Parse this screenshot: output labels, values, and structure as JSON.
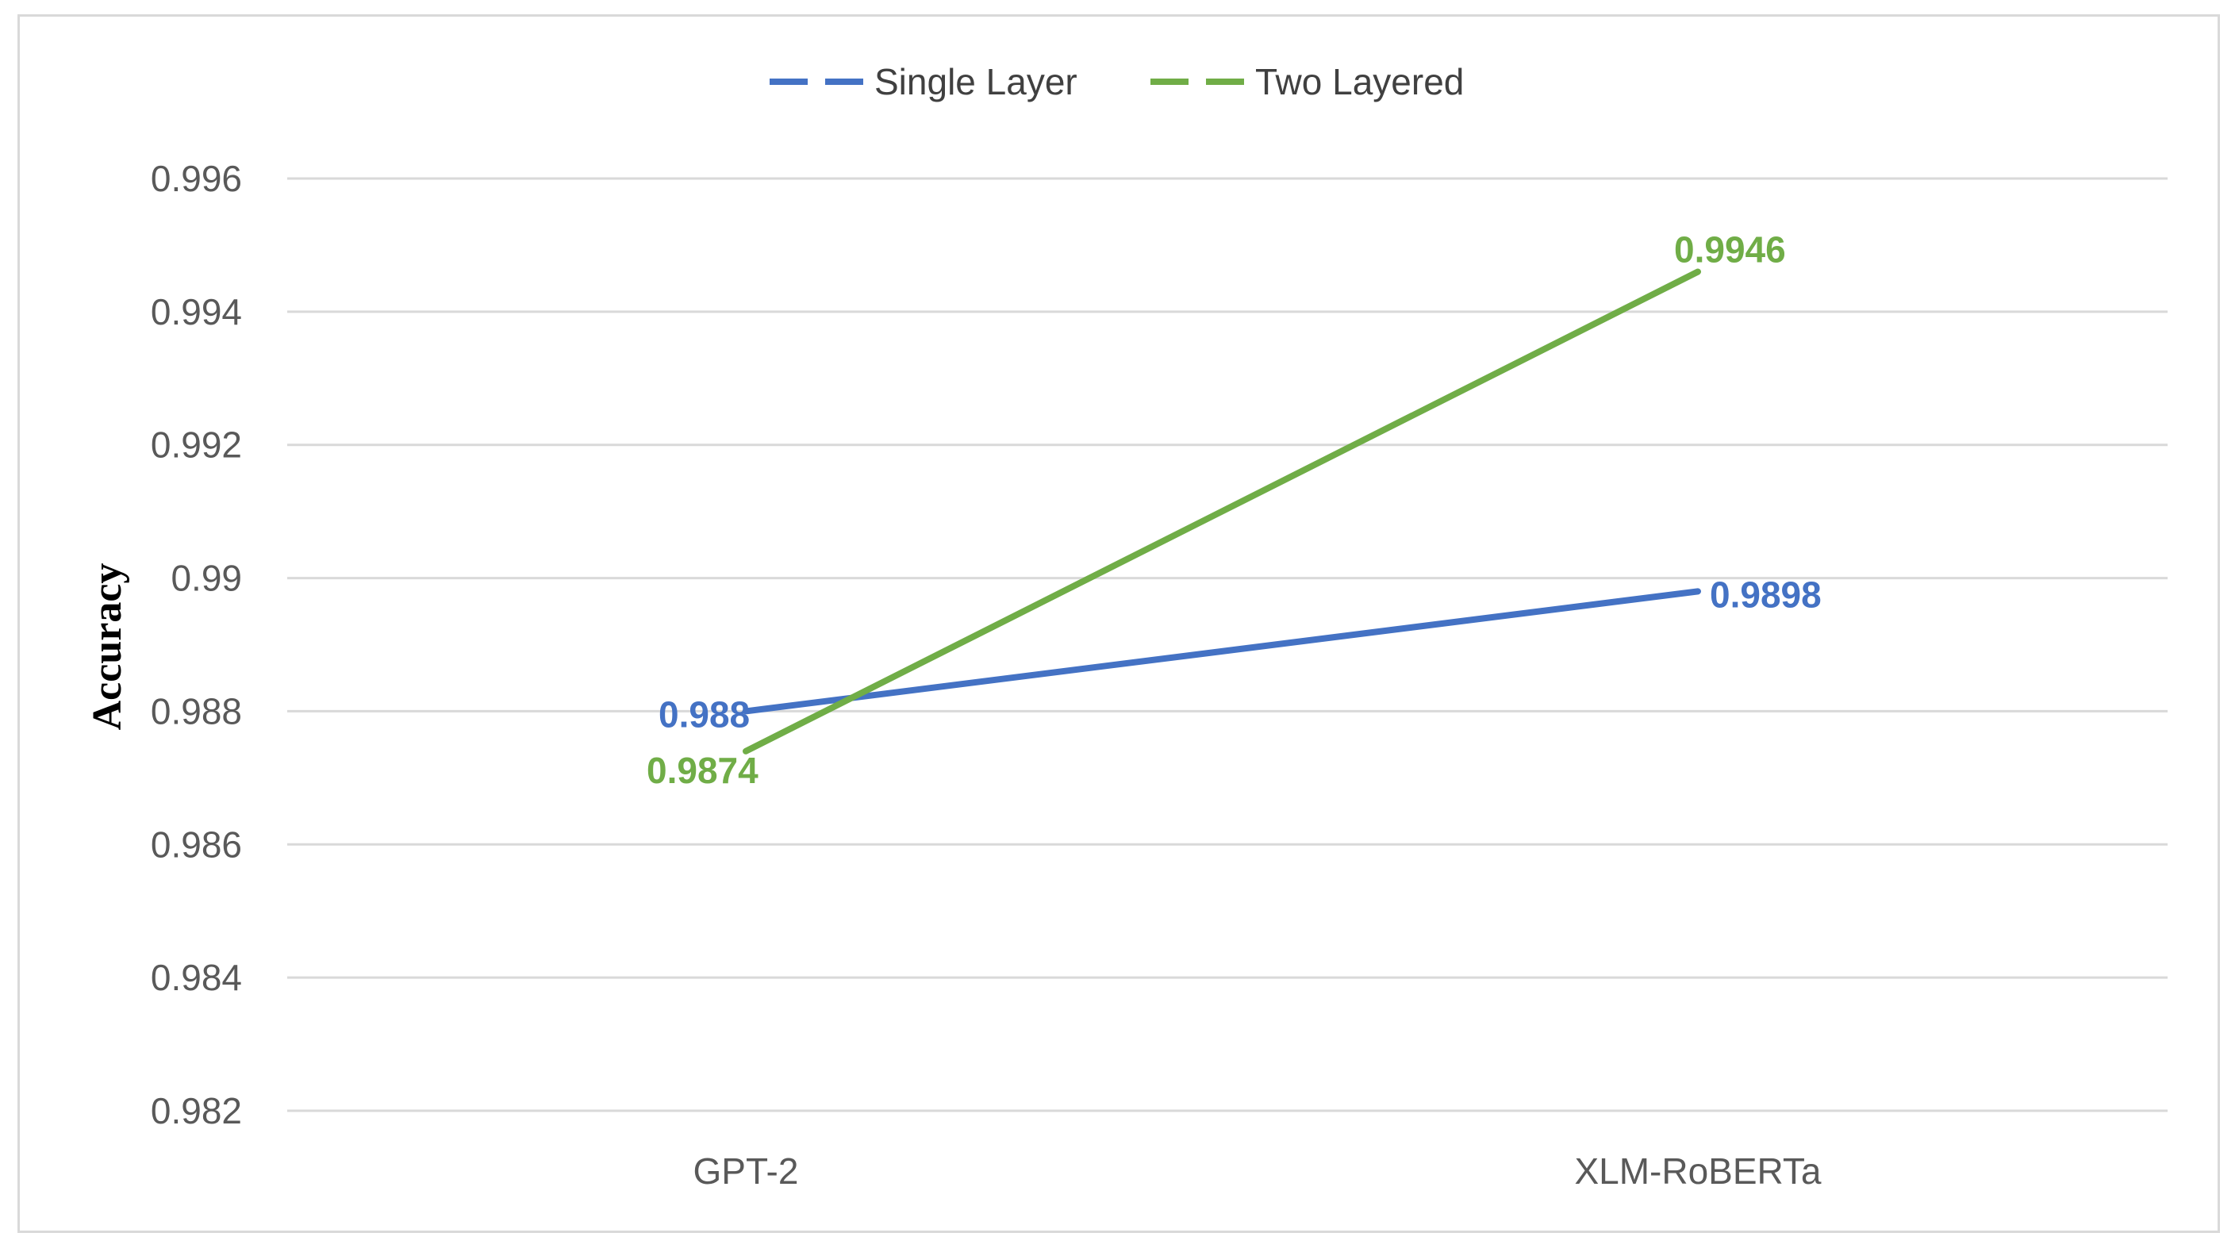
{
  "chart_data": {
    "type": "line",
    "categories": [
      "GPT-2",
      "XLM-RoBERTa"
    ],
    "series": [
      {
        "name": "Single Layer",
        "values": [
          0.988,
          0.9898
        ],
        "labels": [
          "0.988",
          "0.9898"
        ],
        "color": "#4472c4"
      },
      {
        "name": "Two Layered",
        "values": [
          0.9874,
          0.9946
        ],
        "labels": [
          "0.9874",
          "0.9946"
        ],
        "color": "#70ad47"
      }
    ],
    "title": "",
    "xlabel": "",
    "ylabel": "Accuracy",
    "ylim": [
      0.982,
      0.996
    ],
    "yticks": [
      0.982,
      0.984,
      0.986,
      0.988,
      0.99,
      0.992,
      0.994,
      0.996
    ],
    "ytick_labels": [
      "0.982",
      "0.984",
      "0.986",
      "0.988",
      "0.99",
      "0.992",
      "0.994",
      "0.996"
    ],
    "grid": true,
    "legend_position": "top-center",
    "gridline_color": "#d9d9d9"
  }
}
